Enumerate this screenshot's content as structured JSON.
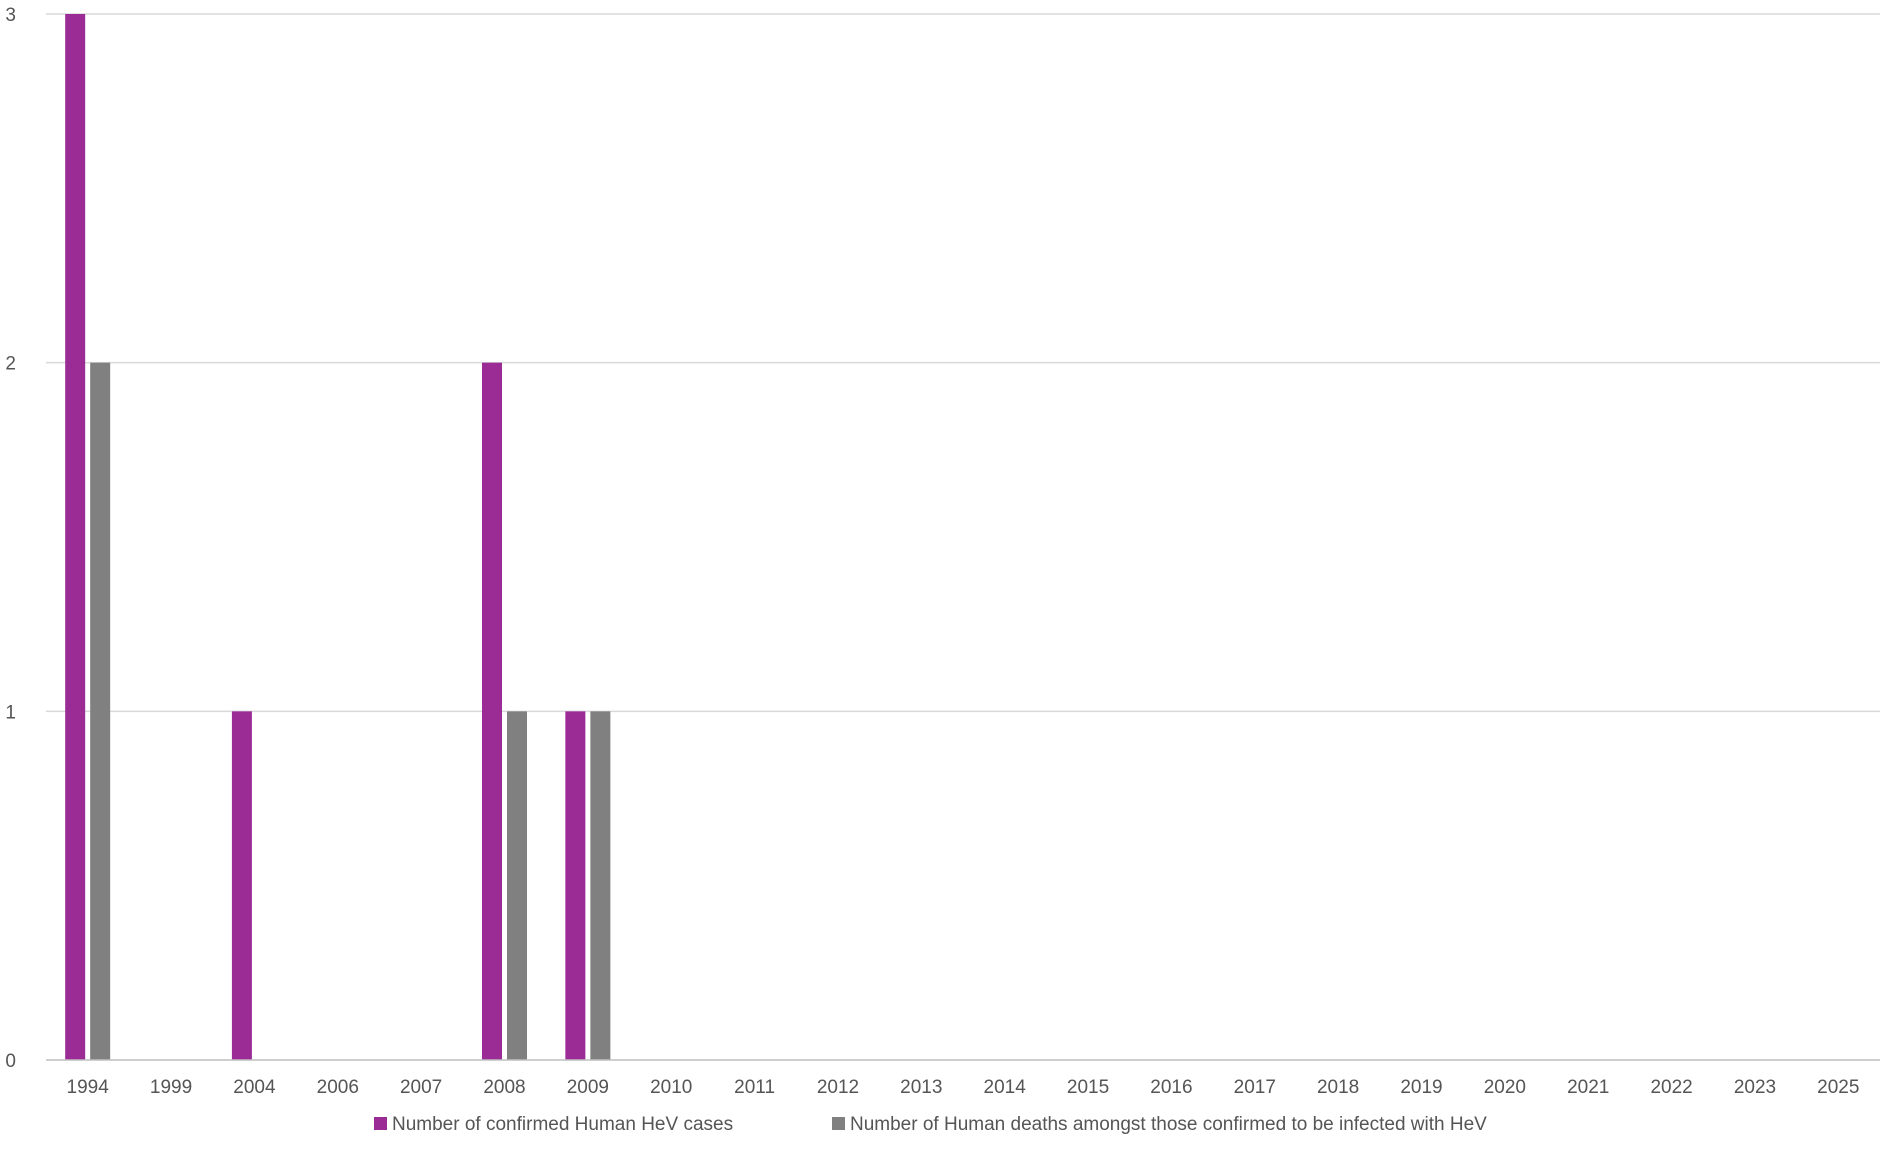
{
  "chart_data": {
    "type": "bar",
    "categories": [
      "1994",
      "1999",
      "2004",
      "2006",
      "2007",
      "2008",
      "2009",
      "2010",
      "2011",
      "2012",
      "2013",
      "2014",
      "2015",
      "2016",
      "2017",
      "2018",
      "2019",
      "2020",
      "2021",
      "2022",
      "2023",
      "2025"
    ],
    "series": [
      {
        "name": "Number of confirmed Human HeV cases",
        "color": "#9b2c96",
        "values": [
          3,
          0,
          1,
          0,
          0,
          2,
          1,
          0,
          0,
          0,
          0,
          0,
          0,
          0,
          0,
          0,
          0,
          0,
          0,
          0,
          0,
          0
        ]
      },
      {
        "name": "Number of Human deaths amongst those confirmed to be infected with HeV",
        "color": "#808080",
        "values": [
          2,
          0,
          0,
          0,
          0,
          1,
          1,
          0,
          0,
          0,
          0,
          0,
          0,
          0,
          0,
          0,
          0,
          0,
          0,
          0,
          0,
          0
        ]
      }
    ],
    "y_ticks": [
      "0",
      "1",
      "2",
      "3"
    ],
    "ylim": [
      0,
      3
    ],
    "grid": true,
    "legend_position": "bottom",
    "title": "",
    "xlabel": "",
    "ylabel": ""
  }
}
